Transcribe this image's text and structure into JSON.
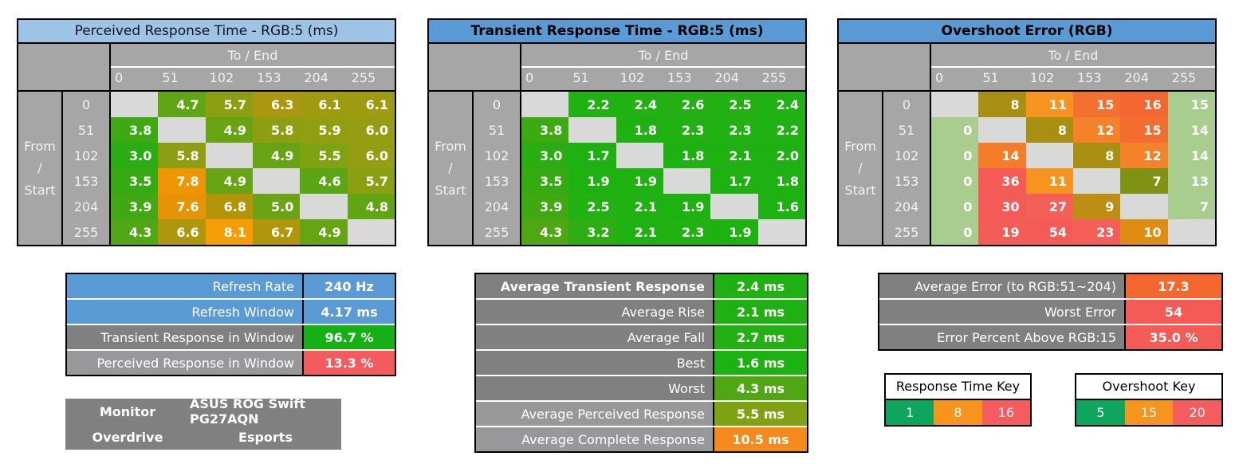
{
  "axis": {
    "to_end_label": "To / End",
    "from_start_lines": [
      "From",
      "/",
      "Start"
    ],
    "levels": [
      "0",
      "51",
      "102",
      "153",
      "204",
      "255"
    ]
  },
  "chart_data": [
    {
      "type": "heatmap",
      "title": "Perceived Response Time - RGB:5 (ms)",
      "title_bg": "#9dc3e6",
      "title_bold": false,
      "x_categories": [
        "0",
        "51",
        "102",
        "153",
        "204",
        "255"
      ],
      "y_categories": [
        "0",
        "51",
        "102",
        "153",
        "204",
        "255"
      ],
      "values": [
        [
          "",
          "4.7",
          "5.7",
          "6.3",
          "6.1",
          "6.1"
        ],
        [
          "3.8",
          "",
          "4.9",
          "5.8",
          "5.9",
          "6.0"
        ],
        [
          "3.0",
          "5.8",
          "",
          "4.9",
          "5.5",
          "6.0"
        ],
        [
          "3.5",
          "7.8",
          "4.9",
          "",
          "4.6",
          "5.7"
        ],
        [
          "3.9",
          "7.6",
          "6.8",
          "5.0",
          "",
          "4.8"
        ],
        [
          "4.3",
          "6.6",
          "8.1",
          "6.7",
          "4.9",
          ""
        ]
      ],
      "colors": [
        [
          "",
          "#60a513",
          "#8b9f12",
          "#ab980e",
          "#9e9b10",
          "#9e9b10"
        ],
        [
          "#3da913",
          "",
          "#66a413",
          "#8e9e12",
          "#929e12",
          "#959d12"
        ],
        [
          "#29ad12",
          "#8e9e12",
          "",
          "#66a413",
          "#80a112",
          "#959d12"
        ],
        [
          "#36aa13",
          "#ee9503",
          "#66a413",
          "",
          "#5aa613",
          "#8b9f12"
        ],
        [
          "#40a813",
          "#e79307",
          "#b4950a",
          "#6aa313",
          "",
          "#62a513"
        ],
        [
          "#4fa713",
          "#ae970c",
          "#f59d05",
          "#b1960b",
          "#66a413",
          ""
        ]
      ]
    },
    {
      "type": "heatmap",
      "title": "Transient Response Time - RGB:5 (ms)",
      "title_bg": "#5b9bd5",
      "title_bold": true,
      "x_categories": [
        "0",
        "51",
        "102",
        "153",
        "204",
        "255"
      ],
      "y_categories": [
        "0",
        "51",
        "102",
        "153",
        "204",
        "255"
      ],
      "values": [
        [
          "",
          "2.2",
          "2.4",
          "2.6",
          "2.5",
          "2.4"
        ],
        [
          "3.8",
          "",
          "1.8",
          "2.3",
          "2.3",
          "2.2"
        ],
        [
          "3.0",
          "1.7",
          "",
          "1.8",
          "2.1",
          "2.0"
        ],
        [
          "3.5",
          "1.9",
          "1.9",
          "",
          "1.7",
          "1.8"
        ],
        [
          "3.9",
          "2.5",
          "2.1",
          "1.9",
          "",
          "1.6"
        ],
        [
          "4.3",
          "3.2",
          "2.1",
          "2.3",
          "1.9",
          ""
        ]
      ],
      "colors": [
        [
          "",
          "#20b112",
          "#20b112",
          "#24b012",
          "#22b012",
          "#20b112"
        ],
        [
          "#3da913",
          "",
          "#1db211",
          "#21b112",
          "#21b112",
          "#20b112"
        ],
        [
          "#29ad12",
          "#1db211",
          "",
          "#1db211",
          "#1fb111",
          "#1eb111"
        ],
        [
          "#36aa13",
          "#1eb211",
          "#1eb211",
          "",
          "#1db211",
          "#1db211"
        ],
        [
          "#40a813",
          "#23b012",
          "#1fb111",
          "#1eb211",
          "",
          "#1cb211"
        ],
        [
          "#4fa713",
          "#2eac13",
          "#1fb111",
          "#21b112",
          "#1eb211",
          ""
        ]
      ]
    },
    {
      "type": "heatmap",
      "title": "Overshoot Error (RGB)",
      "title_bg": "#5b9bd5",
      "title_bold": true,
      "x_categories": [
        "0",
        "51",
        "102",
        "153",
        "204",
        "255"
      ],
      "y_categories": [
        "0",
        "51",
        "102",
        "153",
        "204",
        "255"
      ],
      "values": [
        [
          "",
          "8",
          "11",
          "15",
          "16",
          "15"
        ],
        [
          "0",
          "",
          "8",
          "12",
          "15",
          "14"
        ],
        [
          "0",
          "14",
          "",
          "8",
          "12",
          "14"
        ],
        [
          "0",
          "36",
          "11",
          "",
          "7",
          "13"
        ],
        [
          "0",
          "30",
          "27",
          "9",
          "",
          "7"
        ],
        [
          "0",
          "19",
          "54",
          "23",
          "10",
          ""
        ]
      ],
      "colors": [
        [
          "",
          "#a88f12",
          "#f79420",
          "#f4702e",
          "#f4662f",
          "#a9cd8e"
        ],
        [
          "#a9cd8e",
          "",
          "#a88f12",
          "#f5822a",
          "#f46d30",
          "#a9cd8e"
        ],
        [
          "#a9cd8e",
          "#f57d29",
          "",
          "#a88f12",
          "#f5822a",
          "#a9cd8e"
        ],
        [
          "#a9cd8e",
          "#f45b56",
          "#f79420",
          "",
          "#7f9213",
          "#a9cd8e"
        ],
        [
          "#a9cd8e",
          "#f45b56",
          "#f45f58",
          "#bd8e12",
          "",
          "#a9cd8e"
        ],
        [
          "#a9cd8e",
          "#f45c58",
          "#f45b57",
          "#f45d58",
          "#dd8d11",
          ""
        ]
      ]
    }
  ],
  "refresh_summary": {
    "rows": [
      {
        "label": "Refresh Rate",
        "value": "240 Hz",
        "label_bg": "#5b9bd5",
        "value_bg": "#5b9bd5",
        "label_bold": false
      },
      {
        "label": "Refresh Window",
        "value": "4.17 ms",
        "label_bg": "#5b9bd5",
        "value_bg": "#5b9bd5",
        "label_bold": false
      },
      {
        "label": "Transient Response in Window",
        "value": "96.7 %",
        "label_bg": "#808080",
        "value_bg": "#15b013",
        "label_bold": false
      },
      {
        "label": "Perceived Response in Window",
        "value": "13.3 %",
        "label_bg": "#98989a",
        "value_bg": "#f45b5e",
        "label_bold": false
      }
    ]
  },
  "monitor_info": {
    "bg": "#808080",
    "rows": [
      {
        "label": "Monitor",
        "value": "ASUS ROG Swift PG27AQN"
      },
      {
        "label": "Overdrive",
        "value": "Esports"
      }
    ]
  },
  "transient_summary": {
    "rows": [
      {
        "label": "Average Transient Response",
        "value": "2.4 ms",
        "label_bg": "#808080",
        "value_bg": "#1fb111",
        "label_bold": true
      },
      {
        "label": "Average Rise",
        "value": "2.1 ms",
        "label_bg": "#808080",
        "value_bg": "#1fb111",
        "label_bold": false
      },
      {
        "label": "Average Fall",
        "value": "2.7 ms",
        "label_bg": "#808080",
        "value_bg": "#22b012",
        "label_bold": false
      },
      {
        "label": "Best",
        "value": "1.6 ms",
        "label_bg": "#808080",
        "value_bg": "#1cb211",
        "label_bold": false
      },
      {
        "label": "Worst",
        "value": "4.3 ms",
        "label_bg": "#808080",
        "value_bg": "#4fa713",
        "label_bold": false
      },
      {
        "label": "Average Perceived Response",
        "value": "5.5 ms",
        "label_bg": "#98989a",
        "value_bg": "#7fa112",
        "label_bold": false
      },
      {
        "label": "Average Complete Response",
        "value": "10.5 ms",
        "label_bg": "#98989a",
        "value_bg": "#f58a1c",
        "label_bold": false
      }
    ]
  },
  "overshoot_summary": {
    "rows": [
      {
        "label": "Average Error (to RGB:51~204)",
        "value": "17.3",
        "label_bg": "#808080",
        "value_bg": "#f4672f",
        "label_bold": false
      },
      {
        "label": "Worst Error",
        "value": "54",
        "label_bg": "#808080",
        "value_bg": "#f45b57",
        "label_bold": false
      },
      {
        "label": "Error Percent Above RGB:15",
        "value": "35.0 %",
        "label_bg": "#808080",
        "value_bg": "#f45b57",
        "label_bold": false
      }
    ]
  },
  "keys": [
    {
      "title": "Response Time Key",
      "cells": [
        {
          "label": "1",
          "bg": "#0ea55c"
        },
        {
          "label": "8",
          "bg": "#f7941d"
        },
        {
          "label": "16",
          "bg": "#f45c60"
        }
      ]
    },
    {
      "title": "Overshoot Key",
      "cells": [
        {
          "label": "5",
          "bg": "#0ea55c"
        },
        {
          "label": "15",
          "bg": "#f7941d"
        },
        {
          "label": "20",
          "bg": "#f45c60"
        }
      ]
    }
  ],
  "palette": {
    "header_gray": "#a6a6a6",
    "dark_gray": "#808080",
    "light_gray": "#98989a",
    "diagonal_gray": "#d9d9d9",
    "header_blue": "#5b9bd5",
    "light_blue": "#9dc3e6"
  }
}
